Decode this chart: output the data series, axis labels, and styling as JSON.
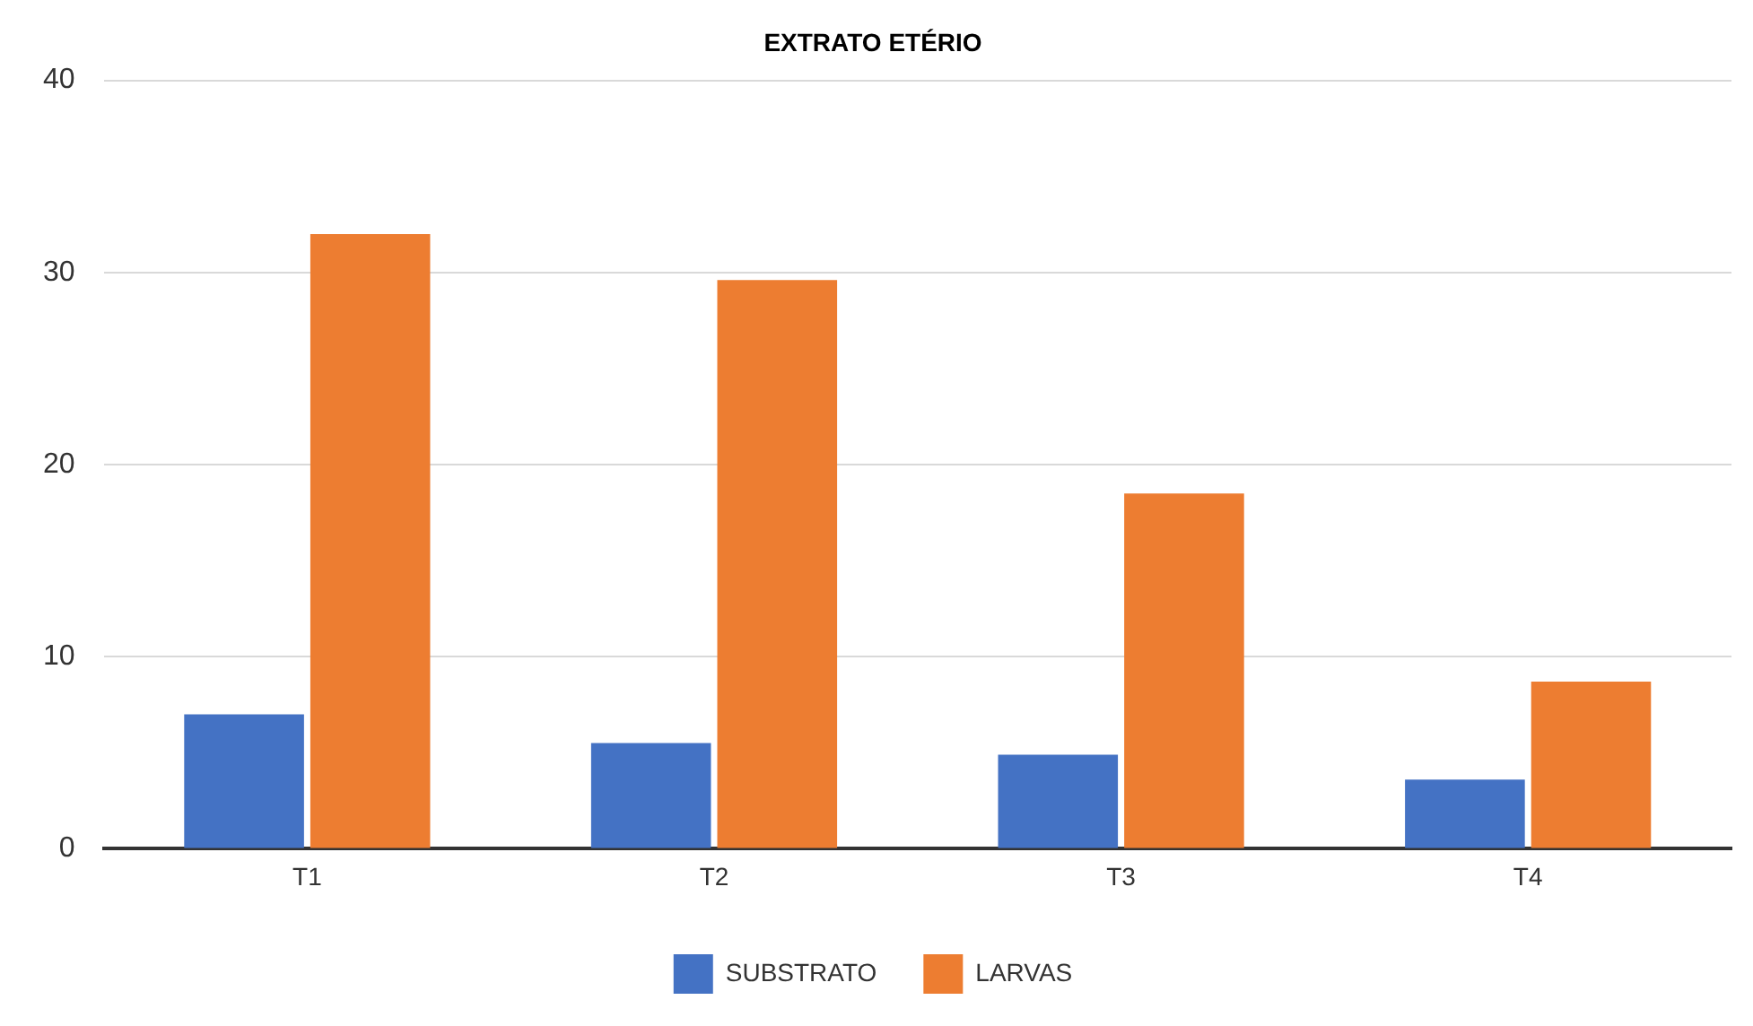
{
  "chart_data": {
    "type": "bar",
    "title": "EXTRATO ETÉRIO",
    "categories": [
      "T1",
      "T2",
      "T3",
      "T4"
    ],
    "series": [
      {
        "name": "SUBSTRATO",
        "color": "#4472c4",
        "values": [
          7.0,
          5.5,
          4.9,
          3.6
        ]
      },
      {
        "name": "LARVAS",
        "color": "#ed7d31",
        "values": [
          32.0,
          29.6,
          18.5,
          8.7
        ]
      }
    ],
    "ylim": [
      0,
      40
    ],
    "yticks": [
      0,
      10,
      20,
      30,
      40
    ],
    "grid": "y",
    "legend": "bottom"
  }
}
